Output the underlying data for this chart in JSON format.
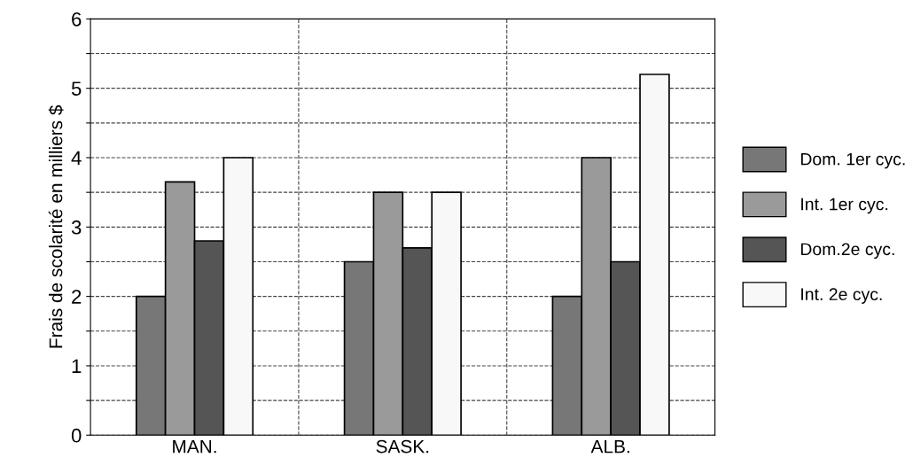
{
  "chart_data": {
    "type": "bar",
    "ylabel": "Frais de scolarité en milliers $",
    "categories": [
      "MAN.",
      "SASK.",
      "ALB."
    ],
    "series": [
      {
        "name": "Dom. 1er cyc.",
        "color": "#777777",
        "values": [
          2,
          2.5,
          2
        ]
      },
      {
        "name": "Int. 1er cyc.",
        "color": "#9a9a9a",
        "values": [
          3.65,
          3.5,
          4
        ]
      },
      {
        "name": "Dom.2e cyc.",
        "color": "#555555",
        "values": [
          2.8,
          2.7,
          2.5
        ]
      },
      {
        "name": "Int. 2e cyc.",
        "color": "#f8f8f8",
        "values": [
          4,
          3.5,
          5.2
        ]
      }
    ],
    "ylim": [
      0,
      6
    ],
    "yticks": [
      0,
      {
        "value": 0.5,
        "label": null
      },
      1,
      {
        "value": 1.5,
        "label": null
      },
      2,
      {
        "value": 2.5,
        "label": null
      },
      3,
      {
        "value": 3.5,
        "label": null
      },
      4,
      {
        "value": 4.5,
        "label": null
      },
      5,
      {
        "value": 5.5,
        "label": null
      },
      6
    ],
    "grid": true,
    "legend": "right"
  }
}
